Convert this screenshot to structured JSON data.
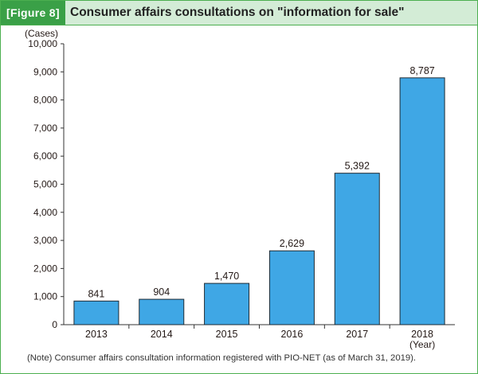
{
  "header": {
    "figure_label": "[Figure 8]",
    "title": "Consumer affairs consultations on \"information for sale\""
  },
  "note": "(Note) Consumer affairs consultation information registered with PIO-NET (as of March 31, 2019).",
  "colors": {
    "bar": "#3fa7e5",
    "bar_border": "#1f2a33",
    "header_bg": "#d3ecd6",
    "label_bg": "#3aa047",
    "frame": "#4caf50"
  },
  "chart_data": {
    "type": "bar",
    "categories": [
      "2013",
      "2014",
      "2015",
      "2016",
      "2017",
      "2018"
    ],
    "values": [
      841,
      904,
      1470,
      2629,
      5392,
      8787
    ],
    "data_labels": [
      "841",
      "904",
      "1,470",
      "2,629",
      "5,392",
      "8,787"
    ],
    "ylabel": "(Cases)",
    "xlabel": "(Year)",
    "ylim": [
      0,
      10000
    ],
    "yticks": [
      0,
      1000,
      2000,
      3000,
      4000,
      5000,
      6000,
      7000,
      8000,
      9000,
      10000
    ],
    "ytick_labels": [
      "0",
      "1,000",
      "2,000",
      "3,000",
      "4,000",
      "5,000",
      "6,000",
      "7,000",
      "8,000",
      "9,000",
      "10,000"
    ],
    "grid": false,
    "legend": "none"
  }
}
